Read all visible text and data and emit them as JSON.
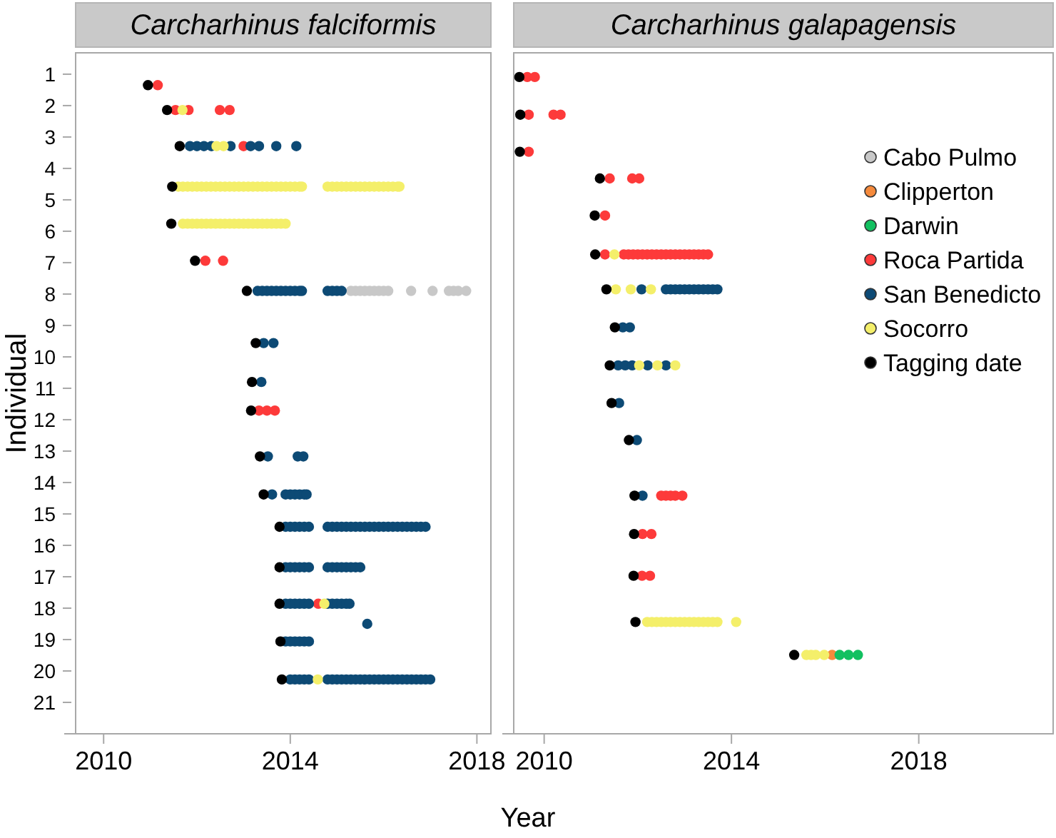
{
  "chart_data": [
    {
      "type": "scatter",
      "title": "Carcharhinus falciformis",
      "xlabel": "Year",
      "ylabel": "Individual",
      "xlim": [
        2009.4,
        2018.3
      ],
      "xticks": [
        2010,
        2014,
        2018
      ],
      "ylim": [
        22.0,
        0.32
      ],
      "yticks": [
        1,
        2,
        3,
        4,
        5,
        6,
        7,
        8,
        9,
        10,
        11,
        12,
        13,
        14,
        15,
        16,
        17,
        18,
        19,
        20,
        21
      ],
      "marker": "circle",
      "legend": false,
      "series": [
        {
          "color": "#c8c8c8",
          "x": [
            2015.3,
            2015.4,
            2015.5,
            2015.6,
            2015.7,
            2015.8,
            2015.9,
            2016.0,
            2016.1,
            2016.59,
            2017.05,
            2017.4,
            2017.5,
            2017.6,
            2017.77
          ],
          "values": [
            7.9,
            7.9,
            7.9,
            7.9,
            7.9,
            7.9,
            7.9,
            7.9,
            7.9,
            7.9,
            7.9,
            7.9,
            7.9,
            7.9,
            7.9
          ]
        },
        {
          "color": "#fd3a3a",
          "x": [
            2011.16,
            2011.54,
            2011.82,
            2012.49,
            2012.7,
            2013.0,
            2012.18,
            2012.56,
            2013.33,
            2013.5,
            2013.67,
            2014.6
          ],
          "values": [
            1.35,
            2.14,
            2.14,
            2.14,
            2.14,
            3.29,
            6.94,
            6.94,
            11.71,
            11.71,
            11.71,
            17.86
          ]
        },
        {
          "color": "#0d4a75",
          "x": [
            2011.85,
            2012.0,
            2012.15,
            2012.31,
            2012.72,
            2013.15,
            2013.33,
            2013.7,
            2014.13,
            2013.3,
            2013.4,
            2013.5,
            2013.6,
            2013.7,
            2013.8,
            2013.9,
            2014.0,
            2014.1,
            2014.2,
            2014.25,
            2014.8,
            2014.9,
            2015.0,
            2015.1,
            2013.43,
            2013.64,
            2013.38,
            2013.52,
            2014.16,
            2014.28,
            2013.61,
            2013.9,
            2014.0,
            2014.1,
            2014.2,
            2014.3,
            2014.35,
            2013.9,
            2014.0,
            2014.1,
            2014.2,
            2014.3,
            2014.4,
            2014.8,
            2014.9,
            2015.0,
            2015.1,
            2015.2,
            2015.3,
            2015.4,
            2015.5,
            2015.6,
            2015.7,
            2015.8,
            2015.9,
            2016.0,
            2016.1,
            2016.2,
            2016.3,
            2016.4,
            2016.5,
            2016.6,
            2016.7,
            2016.8,
            2016.9,
            2013.9,
            2014.0,
            2014.1,
            2014.2,
            2014.3,
            2014.4,
            2014.8,
            2014.9,
            2015.0,
            2015.1,
            2015.2,
            2015.3,
            2015.4,
            2015.5,
            2013.9,
            2014.0,
            2014.1,
            2014.2,
            2014.3,
            2014.4,
            2014.8,
            2014.9,
            2015.0,
            2015.1,
            2015.2,
            2015.27,
            2015.65,
            2013.9,
            2014.0,
            2014.1,
            2014.2,
            2014.3,
            2014.4,
            2014.0,
            2014.1,
            2014.2,
            2014.3,
            2014.4,
            2014.8,
            2014.9,
            2015.0,
            2015.1,
            2015.2,
            2015.3,
            2015.4,
            2015.5,
            2015.6,
            2015.7,
            2015.8,
            2015.9,
            2016.0,
            2016.1,
            2016.2,
            2016.3,
            2016.4,
            2016.5,
            2016.6,
            2016.7,
            2016.8,
            2016.9,
            2017.0
          ],
          "values": [
            3.29,
            3.29,
            3.29,
            3.29,
            3.29,
            3.29,
            3.29,
            3.29,
            3.29,
            7.9,
            7.9,
            7.9,
            7.9,
            7.9,
            7.9,
            7.9,
            7.9,
            7.9,
            7.9,
            7.9,
            7.9,
            7.9,
            7.9,
            7.9,
            9.56,
            9.56,
            10.8,
            13.17,
            13.17,
            13.17,
            14.38,
            14.38,
            14.38,
            14.38,
            14.38,
            14.38,
            14.38,
            15.41,
            15.41,
            15.41,
            15.41,
            15.41,
            15.41,
            15.41,
            15.41,
            15.41,
            15.41,
            15.41,
            15.41,
            15.41,
            15.41,
            15.41,
            15.41,
            15.41,
            15.41,
            15.41,
            15.41,
            15.41,
            15.41,
            15.41,
            15.41,
            15.41,
            15.41,
            15.41,
            15.41,
            16.7,
            16.7,
            16.7,
            16.7,
            16.7,
            16.7,
            16.7,
            16.7,
            16.7,
            16.7,
            16.7,
            16.7,
            16.7,
            16.7,
            17.86,
            17.86,
            17.86,
            17.86,
            17.86,
            17.86,
            17.86,
            17.86,
            17.86,
            17.86,
            17.86,
            17.86,
            18.5,
            19.06,
            19.06,
            19.06,
            19.06,
            19.06,
            19.06,
            20.27,
            20.27,
            20.27,
            20.27,
            20.27,
            20.27,
            20.27,
            20.27,
            20.27,
            20.27,
            20.27,
            20.27,
            20.27,
            20.27,
            20.27,
            20.27,
            20.27,
            20.27,
            20.27,
            20.27,
            20.27,
            20.27,
            20.27,
            20.27,
            20.27,
            20.27,
            20.27,
            20.27
          ]
        },
        {
          "color": "#f4ef6a",
          "x": [
            2011.69,
            2012.42,
            2012.57,
            2011.6,
            2011.7,
            2011.8,
            2011.9,
            2012.0,
            2012.1,
            2012.2,
            2012.3,
            2012.4,
            2012.5,
            2012.6,
            2012.7,
            2012.8,
            2012.9,
            2013.0,
            2013.1,
            2013.2,
            2013.3,
            2013.4,
            2013.5,
            2013.6,
            2013.7,
            2013.8,
            2013.9,
            2014.0,
            2014.1,
            2014.2,
            2014.25,
            2014.8,
            2014.9,
            2015.0,
            2015.1,
            2015.2,
            2015.3,
            2015.4,
            2015.5,
            2015.6,
            2015.7,
            2015.8,
            2015.9,
            2016.0,
            2016.1,
            2016.2,
            2016.3,
            2016.34,
            2011.7,
            2011.8,
            2011.9,
            2012.0,
            2012.1,
            2012.2,
            2012.3,
            2012.4,
            2012.5,
            2012.6,
            2012.7,
            2012.8,
            2012.9,
            2013.0,
            2013.1,
            2013.2,
            2013.3,
            2013.4,
            2013.5,
            2013.6,
            2013.7,
            2013.8,
            2013.9,
            2014.73,
            2014.59
          ],
          "values": [
            2.14,
            3.29,
            3.29,
            4.58,
            4.58,
            4.58,
            4.58,
            4.58,
            4.58,
            4.58,
            4.58,
            4.58,
            4.58,
            4.58,
            4.58,
            4.58,
            4.58,
            4.58,
            4.58,
            4.58,
            4.58,
            4.58,
            4.58,
            4.58,
            4.58,
            4.58,
            4.58,
            4.58,
            4.58,
            4.58,
            4.58,
            4.58,
            4.58,
            4.58,
            4.58,
            4.58,
            4.58,
            4.58,
            4.58,
            4.58,
            4.58,
            4.58,
            4.58,
            4.58,
            4.58,
            4.58,
            4.58,
            4.58,
            5.76,
            5.76,
            5.76,
            5.76,
            5.76,
            5.76,
            5.76,
            5.76,
            5.76,
            5.76,
            5.76,
            5.76,
            5.76,
            5.76,
            5.76,
            5.76,
            5.76,
            5.76,
            5.76,
            5.76,
            5.76,
            5.76,
            5.76,
            17.86,
            20.27
          ]
        },
        {
          "color": "#000000",
          "x": [
            2010.95,
            2011.36,
            2011.63,
            2011.47,
            2011.45,
            2011.96,
            2013.07,
            2013.26,
            2013.18,
            2013.16,
            2013.35,
            2013.43,
            2013.77,
            2013.77,
            2013.77,
            2013.79,
            2013.82
          ],
          "values": [
            1.35,
            2.14,
            3.29,
            4.58,
            5.76,
            6.94,
            7.9,
            9.56,
            10.8,
            11.71,
            13.17,
            14.38,
            15.41,
            16.7,
            17.86,
            19.06,
            20.27
          ]
        }
      ]
    },
    {
      "type": "scatter",
      "title": "Carcharhinus galapagensis",
      "xlim": [
        2009.35,
        2020.87
      ],
      "xticks": [
        2010,
        2014,
        2018
      ],
      "ylim": [
        22.0,
        0.32
      ],
      "tick_labels": "x",
      "marker": "circle",
      "legend": "right",
      "series": [
        {
          "name": "Cabo Pulmo",
          "color": "#c8c8c8"
        },
        {
          "name": "Clipperton",
          "color": "#f58a3c",
          "x": [
            2016.15
          ],
          "values": [
            19.49
          ]
        },
        {
          "name": "Darwin",
          "color": "#12c060",
          "x": [
            2016.31,
            2016.5,
            2016.7
          ],
          "values": [
            19.49,
            19.49,
            19.49
          ]
        },
        {
          "name": "Roca Partida",
          "color": "#fd3a3a",
          "x": [
            2009.64,
            2009.8,
            2009.67,
            2010.2,
            2010.35,
            2009.67,
            2011.4,
            2011.88,
            2012.03,
            2011.3,
            2011.3,
            2011.7,
            2011.8,
            2011.9,
            2012.0,
            2012.1,
            2012.2,
            2012.3,
            2012.4,
            2012.5,
            2012.6,
            2012.7,
            2012.8,
            2012.9,
            2013.0,
            2013.1,
            2013.2,
            2013.3,
            2013.4,
            2013.5,
            2012.5,
            2012.6,
            2012.7,
            2012.8,
            2012.95,
            2012.1,
            2012.29,
            2012.09,
            2012.26
          ],
          "values": [
            1.09,
            1.09,
            2.29,
            2.29,
            2.29,
            3.47,
            4.32,
            4.32,
            4.32,
            5.5,
            6.74,
            6.74,
            6.74,
            6.74,
            6.74,
            6.74,
            6.74,
            6.74,
            6.74,
            6.74,
            6.74,
            6.74,
            6.74,
            6.74,
            6.74,
            6.74,
            6.74,
            6.74,
            6.74,
            6.74,
            14.42,
            14.42,
            14.42,
            14.42,
            14.42,
            15.64,
            15.64,
            16.97,
            16.97
          ]
        },
        {
          "name": "San Benedicto",
          "color": "#0d4a75",
          "x": [
            2012.08,
            2012.6,
            2012.7,
            2012.8,
            2012.9,
            2013.0,
            2013.1,
            2013.2,
            2013.3,
            2013.4,
            2013.5,
            2013.6,
            2013.7,
            2011.68,
            2011.83,
            2011.58,
            2011.73,
            2011.88,
            2012.21,
            2012.6,
            2011.6,
            2011.98,
            2012.1
          ],
          "values": [
            7.85,
            7.85,
            7.85,
            7.85,
            7.85,
            7.85,
            7.85,
            7.85,
            7.85,
            7.85,
            7.85,
            7.85,
            7.85,
            9.06,
            9.06,
            10.27,
            10.27,
            10.27,
            10.27,
            10.27,
            11.47,
            12.65,
            14.42
          ]
        },
        {
          "name": "Socorro",
          "color": "#f4ef6a",
          "x": [
            2011.5,
            2011.53,
            2011.85,
            2012.28,
            2012.03,
            2012.42,
            2012.8,
            2012.2,
            2012.3,
            2012.4,
            2012.5,
            2012.6,
            2012.7,
            2012.8,
            2012.9,
            2013.0,
            2013.1,
            2013.2,
            2013.3,
            2013.4,
            2013.5,
            2013.6,
            2013.7,
            2014.1,
            2015.6,
            2015.7,
            2015.8,
            2015.98
          ],
          "values": [
            6.74,
            7.85,
            7.85,
            7.85,
            10.27,
            10.27,
            10.27,
            18.44,
            18.44,
            18.44,
            18.44,
            18.44,
            18.44,
            18.44,
            18.44,
            18.44,
            18.44,
            18.44,
            18.44,
            18.44,
            18.44,
            18.44,
            18.44,
            18.44,
            19.49,
            19.49,
            19.49,
            19.49
          ]
        },
        {
          "name": "Tagging date",
          "color": "#000000",
          "x": [
            2009.47,
            2009.49,
            2009.48,
            2011.19,
            2011.08,
            2011.09,
            2011.33,
            2011.51,
            2011.4,
            2011.44,
            2011.81,
            2011.93,
            2011.92,
            2011.91,
            2011.95,
            2015.34
          ],
          "values": [
            1.09,
            2.29,
            3.47,
            4.32,
            5.5,
            6.74,
            7.85,
            9.06,
            10.27,
            11.47,
            12.65,
            14.42,
            15.64,
            16.97,
            18.44,
            19.49
          ]
        }
      ]
    }
  ]
}
